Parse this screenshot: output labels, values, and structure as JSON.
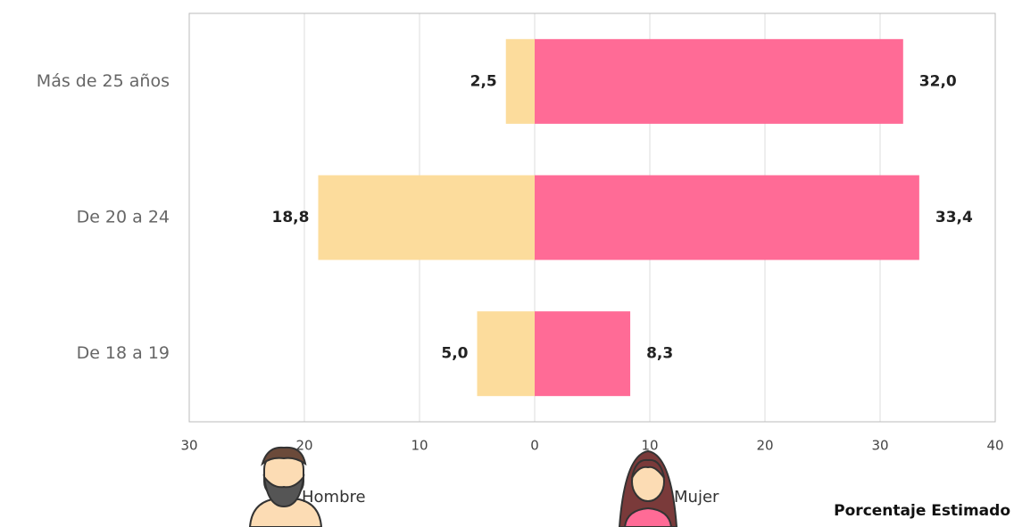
{
  "chart_data": {
    "type": "bar",
    "orientation": "horizontal",
    "categories": [
      "Más de 25 años",
      "De 20 a 24",
      "De 18 a 19"
    ],
    "series": [
      {
        "name": "Hombre",
        "color": "#fcdc9c",
        "values": [
          -2.5,
          -18.8,
          -5.0
        ],
        "value_labels": [
          "2,5",
          "18,8",
          "5,0"
        ]
      },
      {
        "name": "Mujer",
        "color": "#ff6b96",
        "values": [
          32.0,
          33.4,
          8.3
        ],
        "value_labels": [
          "32,0",
          "33,4",
          "8,3"
        ]
      }
    ],
    "xlabel": "Porcentaje Estimado",
    "xlim": [
      -30,
      40
    ],
    "xticks": [
      {
        "value": -30,
        "label": "30"
      },
      {
        "value": -20,
        "label": "20"
      },
      {
        "value": -10,
        "label": "10"
      },
      0,
      10,
      20,
      30,
      40
    ],
    "grid": true
  }
}
